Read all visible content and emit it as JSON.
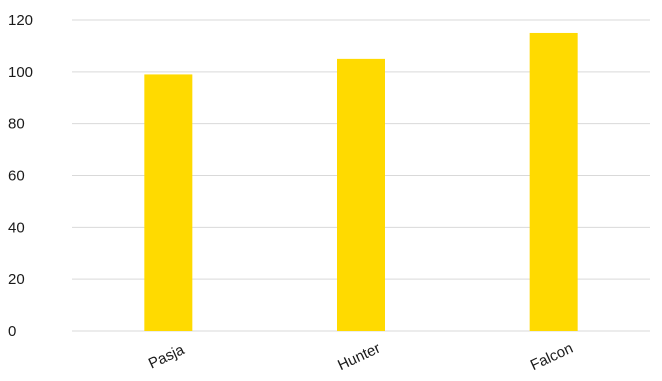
{
  "colors": {
    "bar": "#FFDA00",
    "grid": "#D9D9D9",
    "text": "#1A1A1A"
  },
  "chart_data": {
    "type": "bar",
    "title": "",
    "xlabel": "",
    "ylabel": "",
    "categories": [
      "Pasja",
      "Hunter",
      "Falcon"
    ],
    "values": [
      99,
      105,
      115
    ],
    "ylim": [
      0,
      120
    ],
    "yticks": [
      0,
      20,
      40,
      60,
      80,
      100,
      120
    ],
    "ytick_labels": [
      "0",
      "20",
      "40",
      "60",
      "80",
      "100",
      "120"
    ],
    "grid": true,
    "legend": "none",
    "x_tick_rotation": "diagonal"
  }
}
